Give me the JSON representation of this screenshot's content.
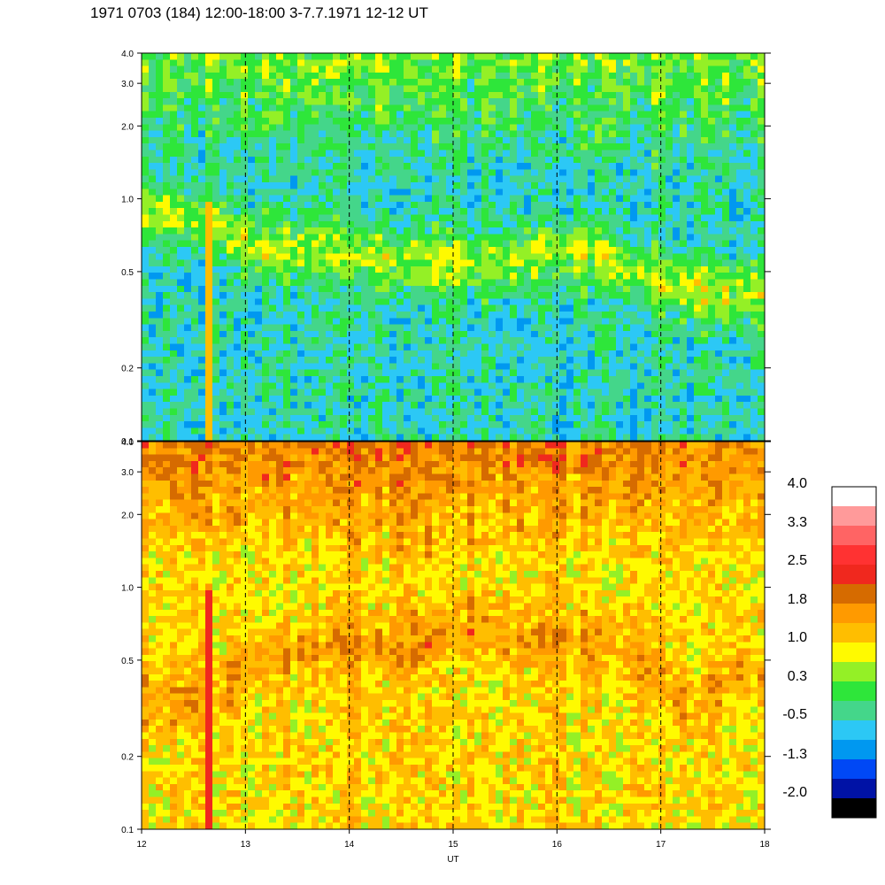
{
  "title": "1971 0703 (184) 12:00-18:00 3-7.7.1971  12-12 UT",
  "chart_data": [
    {
      "type": "heatmap",
      "panel": "upper",
      "x_range": [
        12,
        18
      ],
      "y_range": [
        0.1,
        4.0
      ],
      "y_scale": "log",
      "x_ticks": [
        "12",
        "13",
        "14",
        "15",
        "16",
        "17",
        "18"
      ],
      "y_ticks": [
        {
          "value": 4.0,
          "label": "4.0"
        },
        {
          "value": 3.0,
          "label": "3.0"
        },
        {
          "value": 2.0,
          "label": "2.0"
        },
        {
          "value": 1.0,
          "label": "1.0"
        },
        {
          "value": 0.5,
          "label": "0.5"
        },
        {
          "value": 0.2,
          "label": "0.2"
        },
        {
          "value": 0.1,
          "label": "0.1"
        }
      ],
      "dashed_hours": [
        13,
        14,
        15,
        16,
        17
      ],
      "ridge": {
        "x": [
          12,
          12.7,
          13,
          13.5,
          14,
          14.5,
          15,
          15.5,
          16,
          16.5,
          17,
          17.5,
          18
        ],
        "y": [
          0.9,
          0.8,
          0.65,
          0.6,
          0.6,
          0.55,
          0.55,
          0.55,
          0.6,
          0.55,
          0.45,
          0.4,
          0.4
        ]
      },
      "burst_x": 12.63,
      "background_level": -0.3,
      "ridge_level": 0.7,
      "burst_level": 1.4
    },
    {
      "type": "heatmap",
      "panel": "lower",
      "x_range": [
        12,
        18
      ],
      "y_range": [
        0.1,
        4.0
      ],
      "y_scale": "log",
      "xlabel": "UT",
      "x_ticks": [
        "12",
        "13",
        "14",
        "15",
        "16",
        "17",
        "18"
      ],
      "y_ticks": [
        {
          "value": 4.0,
          "label": "4.0"
        },
        {
          "value": 3.0,
          "label": "3.0"
        },
        {
          "value": 2.0,
          "label": "2.0"
        },
        {
          "value": 1.0,
          "label": "1.0"
        },
        {
          "value": 0.5,
          "label": "0.5"
        },
        {
          "value": 0.2,
          "label": "0.2"
        },
        {
          "value": 0.1,
          "label": "0.1"
        }
      ],
      "dashed_hours": [
        13,
        14,
        15,
        16,
        17
      ],
      "ridge": {
        "x": [
          12,
          12.7,
          13,
          13.5,
          14,
          14.5,
          15,
          15.3,
          15.5,
          16,
          16.5,
          17,
          17.3,
          17.7,
          18
        ],
        "y": [
          0.35,
          0.35,
          0.45,
          0.55,
          0.6,
          0.55,
          0.65,
          0.75,
          0.6,
          0.6,
          0.6,
          0.45,
          0.3,
          0.45,
          0.4
        ]
      },
      "burst_x": 12.63,
      "background_level": 1.2,
      "ridge_level": 1.7,
      "burst_level": 2.5
    }
  ],
  "colorbar": {
    "range": [
      -2.0,
      4.0
    ],
    "labels": [
      "4.0",
      "3.3",
      "2.5",
      "1.8",
      "1.0",
      "0.3",
      "-0.5",
      "-1.3",
      "-2.0"
    ],
    "colors": [
      "#000000",
      "#0012a6",
      "#0048f5",
      "#0098f0",
      "#2cc8f5",
      "#44d68a",
      "#2ee63a",
      "#94f026",
      "#fffa00",
      "#ffbe00",
      "#ff9a00",
      "#d66b00",
      "#f0281e",
      "#ff3232",
      "#ff6464",
      "#ff9a9a",
      "#ffffff"
    ]
  }
}
